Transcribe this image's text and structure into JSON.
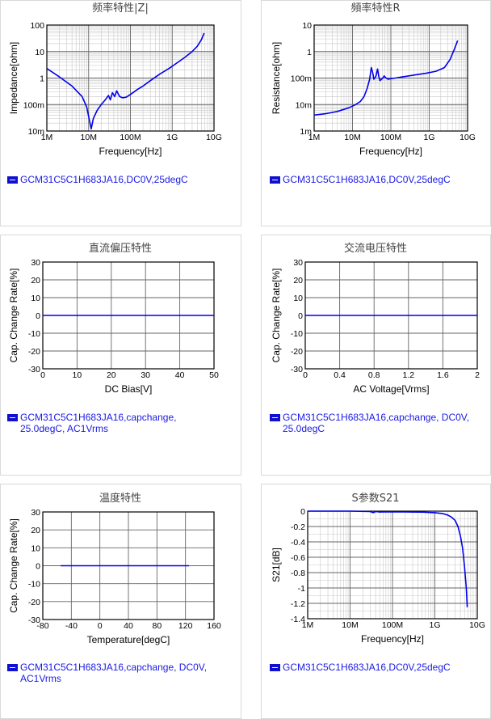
{
  "colors": {
    "curve": "#0000ee",
    "grid": "#999999",
    "frame": "#000000",
    "title": "#444444",
    "legend_text": "#1a1ae6"
  },
  "chart_data": [
    {
      "id": "impedance",
      "type": "line",
      "title": "频率特性|Z|",
      "xlabel": "Frequency[Hz]",
      "ylabel": "Impedance[ohm]",
      "xscale": "log",
      "yscale": "log",
      "xlim": [
        1000000,
        10000000000
      ],
      "ylim": [
        0.01,
        100
      ],
      "xticks": [
        [
          "1M",
          1000000
        ],
        [
          "10M",
          10000000
        ],
        [
          "100M",
          100000000
        ],
        [
          "1G",
          1000000000
        ],
        [
          "10G",
          10000000000
        ]
      ],
      "yticks": [
        [
          "10m",
          0.01
        ],
        [
          "100m",
          0.1
        ],
        [
          "1",
          1
        ],
        [
          "10",
          10
        ],
        [
          "100",
          100
        ]
      ],
      "grid": true,
      "legend": "GCM31C5C1H683JA16,DC0V,25degC",
      "series": [
        {
          "x": [
            1000000,
            2000000,
            4000000,
            7000000,
            9000000,
            10500000,
            11500000,
            13000000,
            16000000,
            20000000,
            25000000,
            30000000,
            33000000,
            37000000,
            42000000,
            47000000,
            55000000,
            65000000,
            80000000,
            100000000,
            150000000,
            200000000,
            300000000,
            500000000,
            800000000,
            1000000000,
            2000000000,
            3000000000,
            4000000000,
            5000000000,
            5800000000
          ],
          "y": [
            2.3,
            1.1,
            0.5,
            0.2,
            0.08,
            0.025,
            0.012,
            0.03,
            0.06,
            0.1,
            0.15,
            0.22,
            0.15,
            0.28,
            0.2,
            0.33,
            0.2,
            0.18,
            0.19,
            0.24,
            0.38,
            0.5,
            0.8,
            1.4,
            2.2,
            2.8,
            6,
            10,
            16,
            28,
            50
          ]
        }
      ]
    },
    {
      "id": "resistance",
      "type": "line",
      "title": "頻率特性R",
      "xlabel": "Frequency[Hz]",
      "ylabel": "Resistance[ohm]",
      "xscale": "log",
      "yscale": "log",
      "xlim": [
        1000000,
        10000000000
      ],
      "ylim": [
        0.001,
        10
      ],
      "xticks": [
        [
          "1M",
          1000000
        ],
        [
          "10M",
          10000000
        ],
        [
          "100M",
          100000000
        ],
        [
          "1G",
          1000000000
        ],
        [
          "10G",
          10000000000
        ]
      ],
      "yticks": [
        [
          "1m",
          0.001
        ],
        [
          "10m",
          0.01
        ],
        [
          "100m",
          0.1
        ],
        [
          "1",
          1
        ],
        [
          "10",
          10
        ]
      ],
      "grid": true,
      "legend": "GCM31C5C1H683JA16,DC0V,25degC",
      "series": [
        {
          "x": [
            1000000,
            2000000,
            4000000,
            8000000,
            12000000,
            16000000,
            20000000,
            24000000,
            28000000,
            31000000,
            34000000,
            36000000,
            38000000,
            41000000,
            45000000,
            48000000,
            52000000,
            57000000,
            62000000,
            67000000,
            75000000,
            85000000,
            100000000,
            130000000,
            200000000,
            400000000,
            800000000,
            1500000000,
            2500000000,
            3500000000,
            4500000000,
            5500000000
          ],
          "y": [
            0.004,
            0.0045,
            0.0055,
            0.0075,
            0.01,
            0.013,
            0.02,
            0.04,
            0.09,
            0.25,
            0.15,
            0.09,
            0.1,
            0.12,
            0.22,
            0.12,
            0.08,
            0.09,
            0.1,
            0.12,
            0.1,
            0.09,
            0.095,
            0.1,
            0.11,
            0.13,
            0.15,
            0.18,
            0.25,
            0.5,
            1.2,
            2.6
          ]
        }
      ]
    },
    {
      "id": "dc-bias",
      "type": "line",
      "title": "直流偏压特性",
      "xlabel": "DC Bias[V]",
      "ylabel": "Cap. Change Rate[%]",
      "xlim": [
        0,
        50
      ],
      "ylim": [
        -30,
        30
      ],
      "xticks": [
        [
          "0",
          0
        ],
        [
          "10",
          10
        ],
        [
          "20",
          20
        ],
        [
          "30",
          30
        ],
        [
          "40",
          40
        ],
        [
          "50",
          50
        ]
      ],
      "yticks": [
        [
          "30",
          30
        ],
        [
          "20",
          20
        ],
        [
          "10",
          10
        ],
        [
          "0",
          0
        ],
        [
          "-10",
          -10
        ],
        [
          "-20",
          -20
        ],
        [
          "-30",
          -30
        ]
      ],
      "grid": true,
      "legend": "GCM31C5C1H683JA16,capchange,\n25.0degC, AC1Vrms",
      "series": [
        {
          "x": [
            0,
            50
          ],
          "y": [
            0,
            0
          ]
        }
      ]
    },
    {
      "id": "ac-voltage",
      "type": "line",
      "title": "交流电压特性",
      "xlabel": "AC Voltage[Vrms]",
      "ylabel": "Cap. Change Rate[%]",
      "xlim": [
        0,
        2
      ],
      "ylim": [
        -30,
        30
      ],
      "xticks": [
        [
          "0",
          0
        ],
        [
          "0.4",
          0.4
        ],
        [
          "0.8",
          0.8
        ],
        [
          "1.2",
          1.2
        ],
        [
          "1.6",
          1.6
        ],
        [
          "2",
          2
        ]
      ],
      "yticks": [
        [
          "30",
          30
        ],
        [
          "20",
          20
        ],
        [
          "10",
          10
        ],
        [
          "0",
          0
        ],
        [
          "-10",
          -10
        ],
        [
          "-20",
          -20
        ],
        [
          "-30",
          -30
        ]
      ],
      "grid": true,
      "legend": "GCM31C5C1H683JA16,capchange, DC0V,\n25.0degC",
      "series": [
        {
          "x": [
            0,
            2
          ],
          "y": [
            0,
            0
          ]
        }
      ]
    },
    {
      "id": "temperature",
      "type": "line",
      "title": "温度特性",
      "xlabel": "Temperature[degC]",
      "ylabel": "Cap. Change Rate[%]",
      "xlim": [
        -80,
        160
      ],
      "ylim": [
        -30,
        30
      ],
      "xticks": [
        [
          "-80",
          -80
        ],
        [
          "-40",
          -40
        ],
        [
          "0",
          0
        ],
        [
          "40",
          40
        ],
        [
          "80",
          80
        ],
        [
          "120",
          120
        ],
        [
          "160",
          160
        ]
      ],
      "yticks": [
        [
          "30",
          30
        ],
        [
          "20",
          20
        ],
        [
          "10",
          10
        ],
        [
          "0",
          0
        ],
        [
          "-10",
          -10
        ],
        [
          "-20",
          -20
        ],
        [
          "-30",
          -30
        ]
      ],
      "grid": true,
      "legend": "GCM31C5C1H683JA16,capchange, DC0V,\nAC1Vrms",
      "series": [
        {
          "x": [
            -55,
            125
          ],
          "y": [
            0,
            0
          ]
        }
      ]
    },
    {
      "id": "s21",
      "type": "line",
      "title": "S参数S21",
      "xlabel": "Frequency[Hz]",
      "ylabel": "S21[dB]",
      "xscale": "log",
      "xlim": [
        1000000,
        10000000000
      ],
      "ylim": [
        -1.4,
        0
      ],
      "xticks": [
        [
          "1M",
          1000000
        ],
        [
          "10M",
          10000000
        ],
        [
          "100M",
          100000000
        ],
        [
          "1G",
          1000000000
        ],
        [
          "10G",
          10000000000
        ]
      ],
      "yticks": [
        [
          "0",
          0
        ],
        [
          "-0.2",
          -0.2
        ],
        [
          "-0.4",
          -0.4
        ],
        [
          "-0.6",
          -0.6
        ],
        [
          "-0.8",
          -0.8
        ],
        [
          "-1",
          -1
        ],
        [
          "-1.2",
          -1.2
        ],
        [
          "-1.4",
          -1.4
        ]
      ],
      "grid": true,
      "legend": "GCM31C5C1H683JA16,DC0V,25degC",
      "series": [
        {
          "x": [
            1000000,
            10000000,
            30000000,
            35000000,
            40000000,
            50000000,
            80000000,
            100000000,
            200000000,
            500000000,
            1000000000,
            1500000000,
            2000000000,
            2500000000,
            3000000000,
            3500000000,
            4000000000,
            4500000000,
            5000000000,
            5500000000,
            5800000000
          ],
          "y": [
            0,
            0,
            -0.005,
            -0.02,
            -0.005,
            -0.012,
            -0.008,
            -0.01,
            -0.01,
            -0.013,
            -0.02,
            -0.03,
            -0.05,
            -0.08,
            -0.12,
            -0.2,
            -0.32,
            -0.48,
            -0.72,
            -1.0,
            -1.25
          ]
        }
      ]
    }
  ]
}
